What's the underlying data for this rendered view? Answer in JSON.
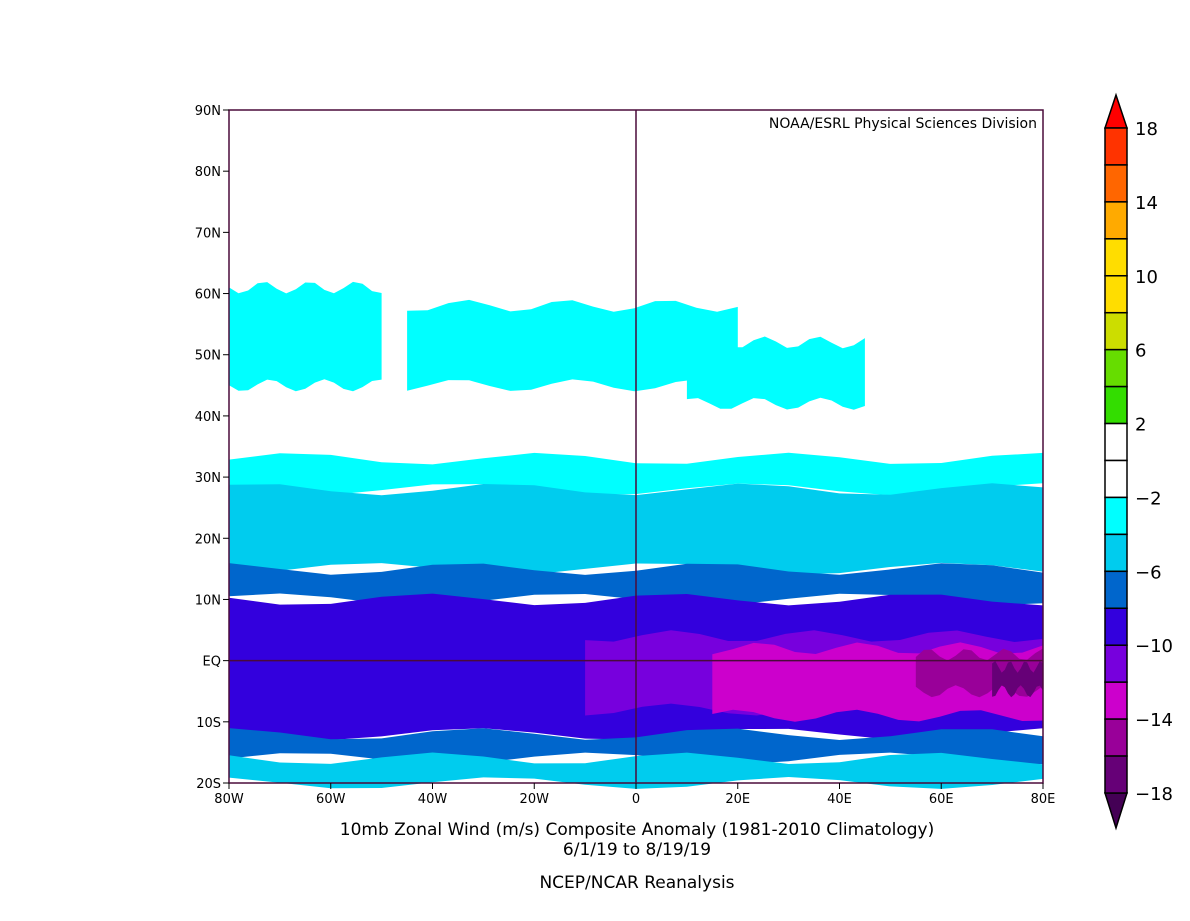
{
  "chart_data": {
    "type": "heatmap",
    "title": "10mb Zonal Wind (m/s) Composite Anomaly (1981-2010 Climatology)",
    "subtitle": "6/1/19  to 8/19/19",
    "source": "NCEP/NCAR Reanalysis",
    "credit": "NOAA/ESRL Physical Sciences Division",
    "xlim": [
      -80,
      80
    ],
    "ylim": [
      -20,
      90
    ],
    "x_ticks": [
      {
        "v": -80,
        "label": "80W"
      },
      {
        "v": -60,
        "label": "60W"
      },
      {
        "v": -40,
        "label": "40W"
      },
      {
        "v": -20,
        "label": "20W"
      },
      {
        "v": 0,
        "label": "0"
      },
      {
        "v": 20,
        "label": "20E"
      },
      {
        "v": 40,
        "label": "40E"
      },
      {
        "v": 60,
        "label": "60E"
      },
      {
        "v": 80,
        "label": "80E"
      }
    ],
    "y_ticks": [
      {
        "v": 90,
        "label": "90N"
      },
      {
        "v": 80,
        "label": "80N"
      },
      {
        "v": 70,
        "label": "70N"
      },
      {
        "v": 60,
        "label": "60N"
      },
      {
        "v": 50,
        "label": "50N"
      },
      {
        "v": 40,
        "label": "40N"
      },
      {
        "v": 30,
        "label": "30N"
      },
      {
        "v": 20,
        "label": "20N"
      },
      {
        "v": 10,
        "label": "10N"
      },
      {
        "v": 0,
        "label": "EQ"
      },
      {
        "v": -10,
        "label": "10S"
      },
      {
        "v": -20,
        "label": "20S"
      }
    ],
    "colorbar": {
      "levels": [
        18,
        16,
        14,
        12,
        10,
        8,
        6,
        4,
        2,
        0,
        -2,
        -4,
        -6,
        -8,
        -10,
        -12,
        -14,
        -16,
        -18
      ],
      "labels": [
        {
          "v": 18,
          "label": "18"
        },
        {
          "v": 14,
          "label": "14"
        },
        {
          "v": 10,
          "label": "10"
        },
        {
          "v": 6,
          "label": "6"
        },
        {
          "v": 2,
          "label": "2"
        },
        {
          "v": -2,
          "label": "−2"
        },
        {
          "v": -6,
          "label": "−6"
        },
        {
          "v": -10,
          "label": "−10"
        },
        {
          "v": -14,
          "label": "−14"
        },
        {
          "v": -18,
          "label": "−18"
        }
      ],
      "colors": [
        "#ff3300",
        "#ff6600",
        "#ffaa00",
        "#ffdd00",
        "#ffdd00",
        "#ccdd00",
        "#66dd00",
        "#33dd00",
        "#ffffff",
        "#ffffff",
        "#00ffff",
        "#00ccee",
        "#0066cc",
        "#3300dd",
        "#7700dd",
        "#cc00cc",
        "#990099",
        "#660077"
      ],
      "over_color": "#ff0000",
      "under_color": "#440055"
    },
    "field_bands": [
      {
        "value": -3,
        "lat_north": 61,
        "lat_south": 45,
        "lon_from": -80,
        "lon_to": -50
      },
      {
        "value": -3,
        "lat_north": 58,
        "lat_south": 45,
        "lon_from": -45,
        "lon_to": 20
      },
      {
        "value": -3,
        "lat_north": 52,
        "lat_south": 42,
        "lon_from": 10,
        "lon_to": 45
      },
      {
        "value": -3,
        "lat_north": 33,
        "lat_south": 28,
        "lon_from": -80,
        "lon_to": 80
      },
      {
        "value": -5,
        "lat_north": 28,
        "lat_south": 15,
        "lon_from": -80,
        "lon_to": 80
      },
      {
        "value": -7,
        "lat_north": 15,
        "lat_south": 10,
        "lon_from": -80,
        "lon_to": 80
      },
      {
        "value": -9,
        "lat_north": 10,
        "lat_south": -12,
        "lon_from": -80,
        "lon_to": 80
      },
      {
        "value": -11,
        "lat_north": 4,
        "lat_south": -8,
        "lon_from": -10,
        "lon_to": 80
      },
      {
        "value": -13,
        "lat_north": 2,
        "lat_south": -9,
        "lon_from": 15,
        "lon_to": 80
      },
      {
        "value": -15,
        "lat_north": 1,
        "lat_south": -5,
        "lon_from": 55,
        "lon_to": 80
      },
      {
        "value": -17,
        "lat_north": -1,
        "lat_south": -5,
        "lon_from": 70,
        "lon_to": 80
      },
      {
        "value": -7,
        "lat_north": -12,
        "lat_south": -16,
        "lon_from": -80,
        "lon_to": 80
      },
      {
        "value": -5,
        "lat_north": -16,
        "lat_south": -20,
        "lon_from": -80,
        "lon_to": 80
      }
    ]
  }
}
